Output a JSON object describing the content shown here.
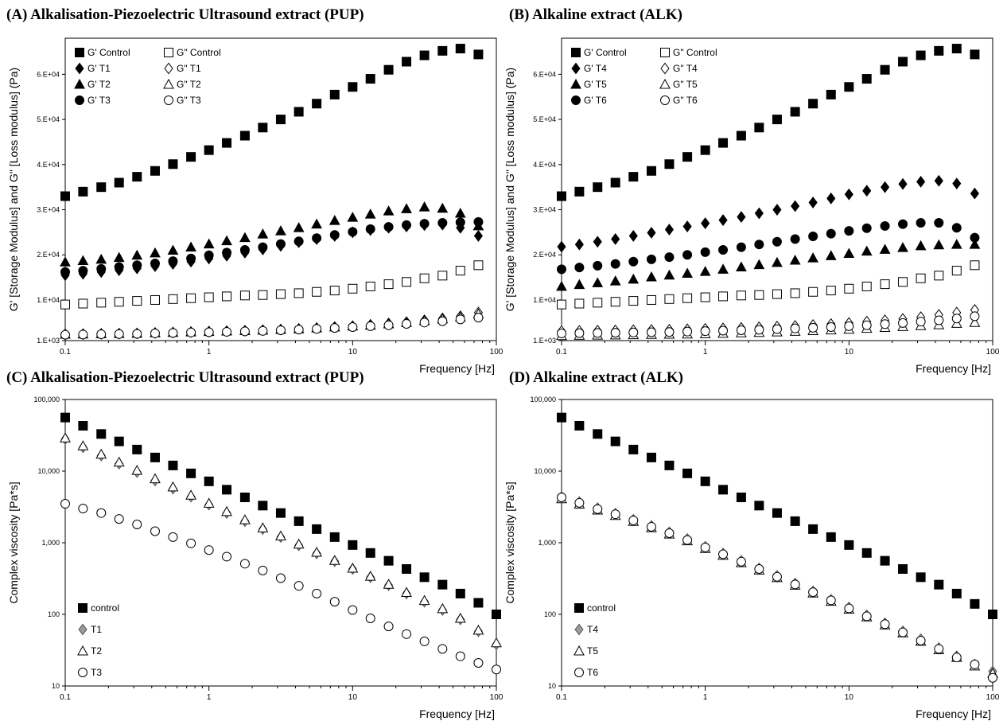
{
  "chart_data": [
    {
      "id": "A",
      "type": "scatter",
      "title": "(A) Alkalisation-Piezoelectric Ultrasound extract (PUP)",
      "xlabel": "Frequency [Hz]",
      "ylabel": "G' [Storage Modulus] and G\" [Loss modulus] (Pa)",
      "xscale": "log",
      "xlim": [
        0.1,
        100
      ],
      "ylim": [
        1000,
        68000
      ],
      "x_ticks": [
        "0.1",
        "1",
        "10",
        "100"
      ],
      "y_ticks": [
        {
          "v": 1000,
          "label": "1.E+03"
        },
        {
          "v": 10000,
          "label": "1.E+04"
        },
        {
          "v": 20000,
          "label": "2.E+04"
        },
        {
          "v": 30000,
          "label": "3.E+04"
        },
        {
          "v": 40000,
          "label": "4.E+04"
        },
        {
          "v": 50000,
          "label": "5.E+04"
        },
        {
          "v": 60000,
          "label": "6.E+04"
        }
      ],
      "legend_position": "top-left",
      "legend_columns": 2,
      "x": [
        0.1,
        0.133,
        0.178,
        0.237,
        0.316,
        0.422,
        0.562,
        0.75,
        1.0,
        1.33,
        1.78,
        2.37,
        3.16,
        4.22,
        5.62,
        7.5,
        10,
        13.3,
        17.8,
        23.7,
        31.6,
        42.2,
        56.2,
        75
      ],
      "series": [
        {
          "name": "G' Control",
          "marker": "square",
          "filled": true,
          "values": [
            33000,
            34000,
            35000,
            36000,
            37300,
            38600,
            40100,
            41700,
            43200,
            44800,
            46400,
            48200,
            50000,
            51700,
            53500,
            55500,
            57200,
            59000,
            61000,
            62800,
            64200,
            65200,
            65700,
            64400
          ]
        },
        {
          "name": "G\" Control",
          "marker": "square",
          "filled": false,
          "values": [
            9000,
            9200,
            9400,
            9600,
            9800,
            10000,
            10200,
            10400,
            10600,
            10800,
            11000,
            11100,
            11300,
            11500,
            11800,
            12100,
            12500,
            13000,
            13500,
            14000,
            14800,
            15400,
            16500,
            17700
          ]
        },
        {
          "name": "G' T1",
          "marker": "diamond",
          "filled": true,
          "values": [
            15500,
            15800,
            16200,
            16600,
            17000,
            17500,
            18000,
            18500,
            19200,
            19800,
            20500,
            21200,
            22000,
            22800,
            23500,
            24200,
            25000,
            25500,
            26000,
            26300,
            26600,
            26700,
            26000,
            24200
          ]
        },
        {
          "name": "G\" T1",
          "marker": "diamond",
          "filled": false,
          "values": [
            2400,
            2450,
            2500,
            2550,
            2600,
            2700,
            2800,
            2900,
            3000,
            3100,
            3200,
            3300,
            3450,
            3600,
            3800,
            4000,
            4200,
            4500,
            4800,
            5100,
            5500,
            5900,
            6400,
            7200
          ]
        },
        {
          "name": "G' T2",
          "marker": "triangle",
          "filled": true,
          "values": [
            18400,
            18700,
            19000,
            19400,
            19900,
            20400,
            21000,
            21700,
            22400,
            23100,
            23800,
            24600,
            25300,
            26000,
            26800,
            27600,
            28300,
            29000,
            29700,
            30200,
            30600,
            30300,
            29200,
            26400
          ]
        },
        {
          "name": "G\" T2",
          "marker": "triangle",
          "filled": false,
          "values": [
            2400,
            2450,
            2500,
            2550,
            2600,
            2700,
            2800,
            2900,
            3000,
            3100,
            3200,
            3300,
            3450,
            3600,
            3800,
            4000,
            4200,
            4400,
            4700,
            5000,
            5400,
            5800,
            6200,
            6900
          ]
        },
        {
          "name": "G' T3",
          "marker": "circle",
          "filled": true,
          "values": [
            16200,
            16500,
            16900,
            17300,
            17700,
            18100,
            18600,
            19200,
            19900,
            20500,
            21100,
            21700,
            22400,
            23000,
            23700,
            24400,
            25100,
            25700,
            26200,
            26600,
            26900,
            27100,
            27200,
            27300
          ]
        },
        {
          "name": "G\" T3",
          "marker": "circle",
          "filled": false,
          "values": [
            2300,
            2350,
            2400,
            2450,
            2500,
            2600,
            2700,
            2800,
            2850,
            2950,
            3050,
            3150,
            3300,
            3450,
            3600,
            3800,
            4000,
            4200,
            4400,
            4700,
            5000,
            5300,
            5700,
            6100
          ]
        }
      ]
    },
    {
      "id": "B",
      "type": "scatter",
      "title": "(B) Alkaline extract (ALK)",
      "xlabel": "Frequency [Hz]",
      "ylabel": "G' [Storage Modulus] and G\" [Loss modulus] (Pa)",
      "xscale": "log",
      "xlim": [
        0.1,
        100
      ],
      "ylim": [
        1000,
        68000
      ],
      "x_ticks": [
        "0.1",
        "1",
        "10",
        "100"
      ],
      "y_ticks": [
        {
          "v": 1000,
          "label": "1.E+03"
        },
        {
          "v": 10000,
          "label": "1.E+04"
        },
        {
          "v": 20000,
          "label": "2.E+04"
        },
        {
          "v": 30000,
          "label": "3.E+04"
        },
        {
          "v": 40000,
          "label": "4.E+04"
        },
        {
          "v": 50000,
          "label": "5.E+04"
        },
        {
          "v": 60000,
          "label": "6.E+04"
        }
      ],
      "legend_position": "top-left",
      "legend_columns": 2,
      "x": [
        0.1,
        0.133,
        0.178,
        0.237,
        0.316,
        0.422,
        0.562,
        0.75,
        1.0,
        1.33,
        1.78,
        2.37,
        3.16,
        4.22,
        5.62,
        7.5,
        10,
        13.3,
        17.8,
        23.7,
        31.6,
        42.2,
        56.2,
        75
      ],
      "series": [
        {
          "name": "G' Control",
          "marker": "square",
          "filled": true,
          "values": [
            33000,
            34000,
            35000,
            36000,
            37300,
            38600,
            40100,
            41700,
            43200,
            44800,
            46400,
            48200,
            50000,
            51700,
            53500,
            55500,
            57200,
            59000,
            61000,
            62800,
            64200,
            65200,
            65700,
            64400
          ]
        },
        {
          "name": "G\" Control",
          "marker": "square",
          "filled": false,
          "values": [
            9000,
            9200,
            9400,
            9600,
            9800,
            10000,
            10200,
            10400,
            10600,
            10800,
            11000,
            11100,
            11300,
            11500,
            11800,
            12100,
            12500,
            13000,
            13500,
            14000,
            14800,
            15400,
            16500,
            17700
          ]
        },
        {
          "name": "G' T4",
          "marker": "diamond",
          "filled": true,
          "values": [
            21800,
            22300,
            22900,
            23500,
            24200,
            24900,
            25600,
            26300,
            27000,
            27700,
            28400,
            29200,
            30000,
            30800,
            31600,
            32500,
            33400,
            34200,
            35000,
            35700,
            36200,
            36400,
            35800,
            33600
          ]
        },
        {
          "name": "G\" T4",
          "marker": "diamond",
          "filled": false,
          "values": [
            3100,
            3150,
            3200,
            3250,
            3300,
            3350,
            3400,
            3500,
            3600,
            3700,
            3800,
            3950,
            4100,
            4250,
            4450,
            4650,
            4900,
            5200,
            5500,
            5800,
            6200,
            6700,
            7200,
            7800
          ]
        },
        {
          "name": "G' T5",
          "marker": "triangle",
          "filled": true,
          "values": [
            13000,
            13400,
            13800,
            14200,
            14600,
            15100,
            15500,
            15900,
            16300,
            16800,
            17300,
            17800,
            18300,
            18800,
            19300,
            19800,
            20300,
            20800,
            21200,
            21600,
            22000,
            22200,
            22300,
            22300
          ]
        },
        {
          "name": "G\" T5",
          "marker": "triangle",
          "filled": false,
          "values": [
            2100,
            2150,
            2200,
            2250,
            2300,
            2350,
            2400,
            2450,
            2500,
            2600,
            2700,
            2800,
            2900,
            3050,
            3200,
            3350,
            3500,
            3700,
            3900,
            4100,
            4300,
            4500,
            4800,
            5000
          ]
        },
        {
          "name": "G' T6",
          "marker": "circle",
          "filled": true,
          "values": [
            16800,
            17200,
            17600,
            18000,
            18500,
            19000,
            19500,
            20000,
            20600,
            21100,
            21700,
            22300,
            22900,
            23500,
            24100,
            24700,
            25300,
            25900,
            26400,
            26800,
            27100,
            27100,
            26000,
            23800
          ]
        },
        {
          "name": "G\" T6",
          "marker": "circle",
          "filled": false,
          "values": [
            2600,
            2650,
            2700,
            2750,
            2800,
            2850,
            2900,
            3000,
            3100,
            3200,
            3300,
            3400,
            3550,
            3700,
            3850,
            4000,
            4200,
            4400,
            4650,
            4900,
            5200,
            5500,
            5900,
            6400
          ]
        }
      ]
    },
    {
      "id": "C",
      "type": "scatter",
      "title": "(C) Alkalisation-Piezoelectric Ultrasound extract (PUP)",
      "xlabel": "Frequency [Hz]",
      "ylabel": "Complex viscosity [Pa*s]",
      "xscale": "log",
      "yscale": "log",
      "xlim": [
        0.1,
        100
      ],
      "ylim": [
        10,
        100000
      ],
      "x_ticks": [
        "0.1",
        "1",
        "10",
        "100"
      ],
      "y_ticks": [
        {
          "v": 10,
          "label": "10"
        },
        {
          "v": 100,
          "label": "100"
        },
        {
          "v": 1000,
          "label": "1,000"
        },
        {
          "v": 10000,
          "label": "10,000"
        },
        {
          "v": 100000,
          "label": "100,000"
        }
      ],
      "legend_position": "bottom-left",
      "legend_columns": 1,
      "x": [
        0.1,
        0.133,
        0.178,
        0.237,
        0.316,
        0.422,
        0.562,
        0.75,
        1.0,
        1.33,
        1.78,
        2.37,
        3.16,
        4.22,
        5.62,
        7.5,
        10,
        13.3,
        17.8,
        23.7,
        31.6,
        42.2,
        56.2,
        75,
        100
      ],
      "series": [
        {
          "name": "control",
          "marker": "square",
          "filled": true,
          "values": [
            56000,
            43000,
            33000,
            26000,
            20000,
            15500,
            12000,
            9300,
            7200,
            5500,
            4300,
            3300,
            2600,
            2000,
            1550,
            1200,
            930,
            720,
            560,
            430,
            330,
            260,
            195,
            145,
            100
          ]
        },
        {
          "name": "T1",
          "marker": "diamond",
          "filled": "half",
          "values": [
            28000,
            21500,
            16500,
            12700,
            9700,
            7400,
            5700,
            4400,
            3400,
            2600,
            2000,
            1550,
            1200,
            920,
            710,
            550,
            430,
            330,
            255,
            195,
            150,
            115,
            85,
            58,
            38
          ]
        },
        {
          "name": "T2",
          "marker": "triangle",
          "filled": false,
          "values": [
            29000,
            22500,
            17200,
            13300,
            10200,
            7800,
            6000,
            4600,
            3550,
            2720,
            2090,
            1610,
            1240,
            955,
            735,
            565,
            440,
            340,
            262,
            202,
            156,
            120,
            88,
            60,
            40
          ]
        },
        {
          "name": "T3",
          "marker": "circle",
          "filled": false,
          "values": [
            3500,
            3000,
            2600,
            2150,
            1800,
            1450,
            1200,
            980,
            790,
            640,
            510,
            410,
            320,
            250,
            195,
            150,
            115,
            88,
            68,
            53,
            42,
            33,
            26,
            21,
            17
          ]
        }
      ]
    },
    {
      "id": "D",
      "type": "scatter",
      "title": "(D) Alkaline extract (ALK)",
      "xlabel": "Frequency [Hz]",
      "ylabel": "Complex viscosity [Pa*s]",
      "xscale": "log",
      "yscale": "log",
      "xlim": [
        0.1,
        100
      ],
      "ylim": [
        10,
        100000
      ],
      "x_ticks": [
        "0.1",
        "1",
        "10",
        "100"
      ],
      "y_ticks": [
        {
          "v": 10,
          "label": "10"
        },
        {
          "v": 100,
          "label": "100"
        },
        {
          "v": 1000,
          "label": "1,000"
        },
        {
          "v": 10000,
          "label": "10,000"
        },
        {
          "v": 100000,
          "label": "100,000"
        }
      ],
      "legend_position": "bottom-left",
      "legend_columns": 1,
      "x": [
        0.1,
        0.133,
        0.178,
        0.237,
        0.316,
        0.422,
        0.562,
        0.75,
        1.0,
        1.33,
        1.78,
        2.37,
        3.16,
        4.22,
        5.62,
        7.5,
        10,
        13.3,
        17.8,
        23.7,
        31.6,
        42.2,
        56.2,
        75,
        100
      ],
      "series": [
        {
          "name": "control",
          "marker": "square",
          "filled": true,
          "values": [
            56000,
            43000,
            33000,
            26000,
            20000,
            15500,
            12000,
            9300,
            7200,
            5500,
            4300,
            3300,
            2600,
            2000,
            1550,
            1200,
            930,
            720,
            560,
            430,
            330,
            260,
            195,
            140,
            100
          ]
        },
        {
          "name": "T4",
          "marker": "diamond",
          "filled": "half",
          "values": [
            4400,
            3700,
            3050,
            2550,
            2100,
            1720,
            1400,
            1130,
            880,
            710,
            560,
            440,
            345,
            270,
            210,
            160,
            125,
            97,
            75,
            58,
            45,
            34,
            26,
            20,
            16
          ]
        },
        {
          "name": "T5",
          "marker": "triangle",
          "filled": false,
          "values": [
            4100,
            3450,
            2850,
            2400,
            1980,
            1620,
            1320,
            1060,
            830,
            665,
            525,
            415,
            325,
            255,
            198,
            152,
            118,
            92,
            71,
            55,
            42,
            32,
            25,
            19,
            15
          ]
        },
        {
          "name": "T6",
          "marker": "circle",
          "filled": false,
          "values": [
            4300,
            3600,
            2950,
            2500,
            2050,
            1670,
            1360,
            1090,
            860,
            690,
            545,
            430,
            335,
            262,
            204,
            157,
            121,
            94,
            73,
            56,
            43,
            33,
            25,
            20,
            13
          ]
        }
      ]
    }
  ]
}
